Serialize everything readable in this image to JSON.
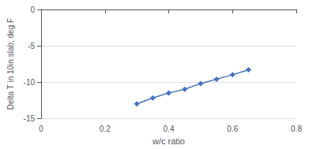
{
  "chart_data": {
    "type": "line",
    "xlabel": "w/c ratio",
    "ylabel": "Delta T in 10in slab, deg F",
    "x": [
      0.3,
      0.35,
      0.4,
      0.45,
      0.5,
      0.55,
      0.6,
      0.65
    ],
    "values": [
      -13.0,
      -12.2,
      -11.5,
      -11.0,
      -10.2,
      -9.6,
      -9.0,
      -8.3
    ],
    "color": "#4472C4",
    "marker": "diamond",
    "xlim": [
      0,
      0.8
    ],
    "ylim": [
      -15,
      0
    ],
    "xticks": [
      0,
      0.2,
      0.4,
      0.6,
      0.8
    ],
    "yticks": [
      -15,
      -10,
      -5,
      0
    ],
    "grid": "y"
  }
}
